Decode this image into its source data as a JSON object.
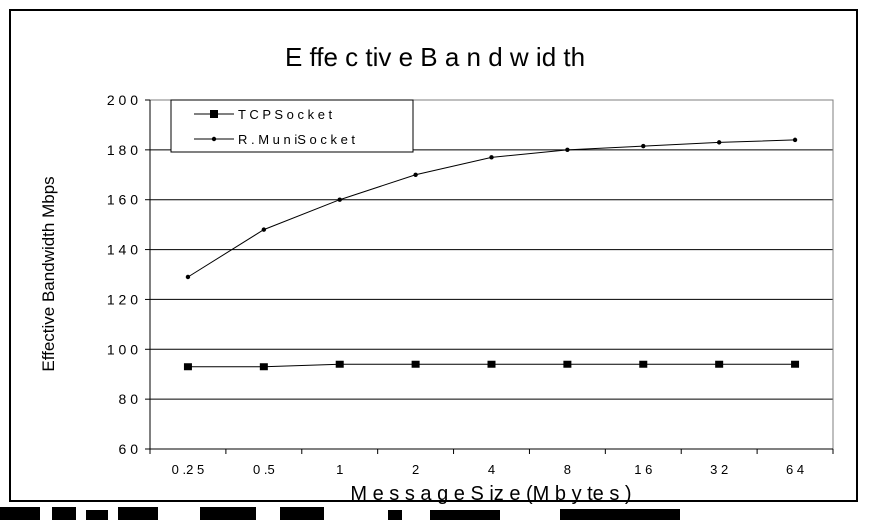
{
  "chart_data": {
    "type": "line",
    "title": "E ffe c tiv e   B a n d w id th",
    "xlabel": "M e s s a g e   S iz e   (M b y te s )",
    "ylabel": "Effective Bandwidth Mbps",
    "categories": [
      "0 .2 5",
      "0 .5",
      "1",
      "2",
      "4",
      "8",
      "1 6",
      "3 2",
      "6 4"
    ],
    "ylim": [
      60,
      200
    ],
    "yticks": [
      60,
      80,
      100,
      120,
      140,
      160,
      180,
      200
    ],
    "ytick_labels": [
      "6 0",
      "8 0",
      "1 0 0",
      "1 2 0",
      "1 4 0",
      "1 6 0",
      "1 8 0",
      "2 0 0"
    ],
    "grid": "horizontal",
    "legend_position": "top-left",
    "series": [
      {
        "name": "T C P  S o c k e t",
        "marker": "square",
        "color": "#000000",
        "values": [
          93,
          93,
          94,
          94,
          94,
          94,
          94,
          94,
          94
        ]
      },
      {
        "name": "R .  M u n iS o c k e t",
        "marker": "dot",
        "color": "#000000",
        "values": [
          129,
          148,
          160,
          170,
          177,
          180,
          181.5,
          183,
          184
        ]
      }
    ]
  }
}
